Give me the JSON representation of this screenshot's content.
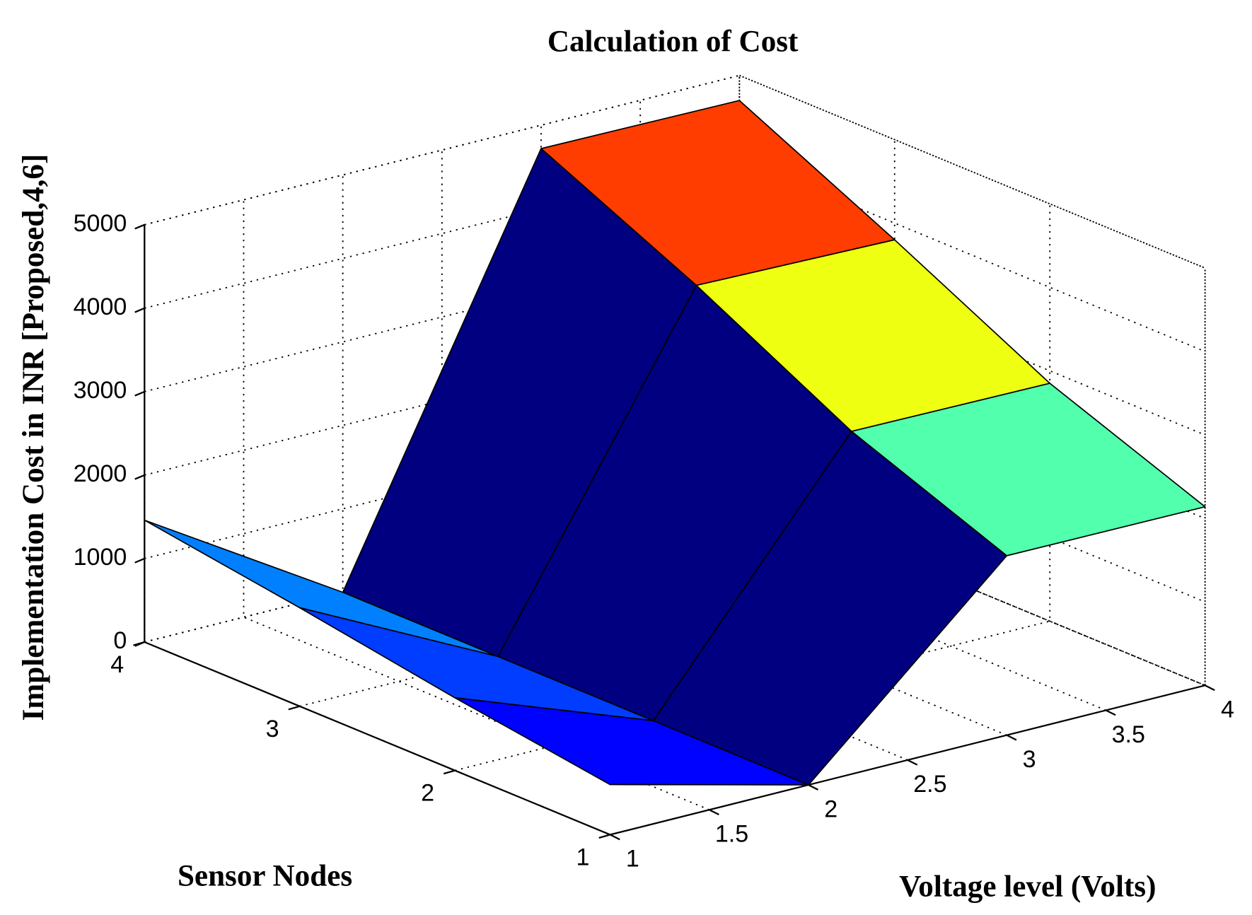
{
  "chart_data": {
    "type": "surface3d",
    "title": "Calculation of Cost",
    "xlabel": "Voltage level (Volts)",
    "ylabel": "Sensor Nodes",
    "zlabel": "Implementation Cost in INR [Proposed,4,6]",
    "x": [
      1,
      2,
      3,
      4
    ],
    "y": [
      1,
      2,
      3,
      4
    ],
    "z": [
      [
        600,
        0,
        2150,
        2140
      ],
      [
        870,
        0,
        2870,
        2850
      ],
      [
        1180,
        0,
        3850,
        3800
      ],
      [
        1460,
        0,
        4720,
        4700
      ]
    ],
    "colormap": "jet",
    "xlim": [
      1,
      4
    ],
    "xticks": [
      1,
      1.5,
      2,
      2.5,
      3,
      3.5,
      4
    ],
    "ylim": [
      1,
      4
    ],
    "yticks": [
      1,
      2,
      3,
      4
    ],
    "zlim": [
      0,
      5000
    ],
    "zticks": [
      0,
      1000,
      2000,
      3000,
      4000,
      5000
    ],
    "grid": true
  }
}
